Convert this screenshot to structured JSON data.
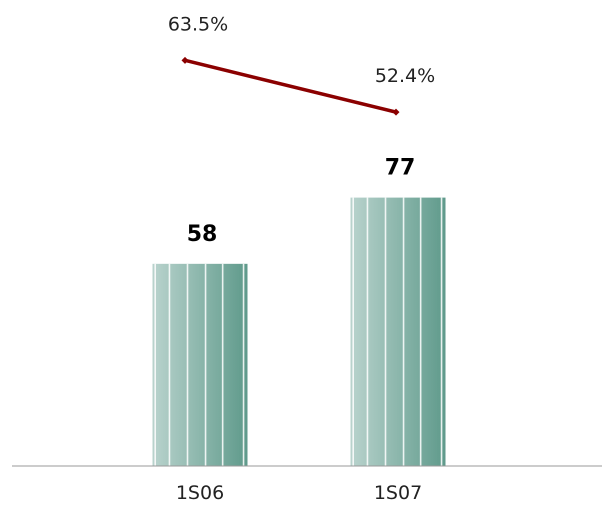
{
  "chart_data": {
    "type": "bar",
    "categories": [
      "1S06",
      "1S07"
    ],
    "series": [
      {
        "values": [
          58,
          77
        ],
        "data_labels": [
          "58",
          "77"
        ]
      },
      {
        "type": "line",
        "values": [
          63.5,
          52.4
        ],
        "data_labels": [
          "63.5%",
          "52.4%"
        ]
      }
    ],
    "ylim": [
      0,
      105
    ],
    "line_ylim": [
      40,
      70
    ],
    "grid": false,
    "legend": "none",
    "colors": {
      "bar_light": "#b9d3cd",
      "bar_dark": "#5f9a8b",
      "line": "#8b0000",
      "axis": "#999999"
    }
  }
}
